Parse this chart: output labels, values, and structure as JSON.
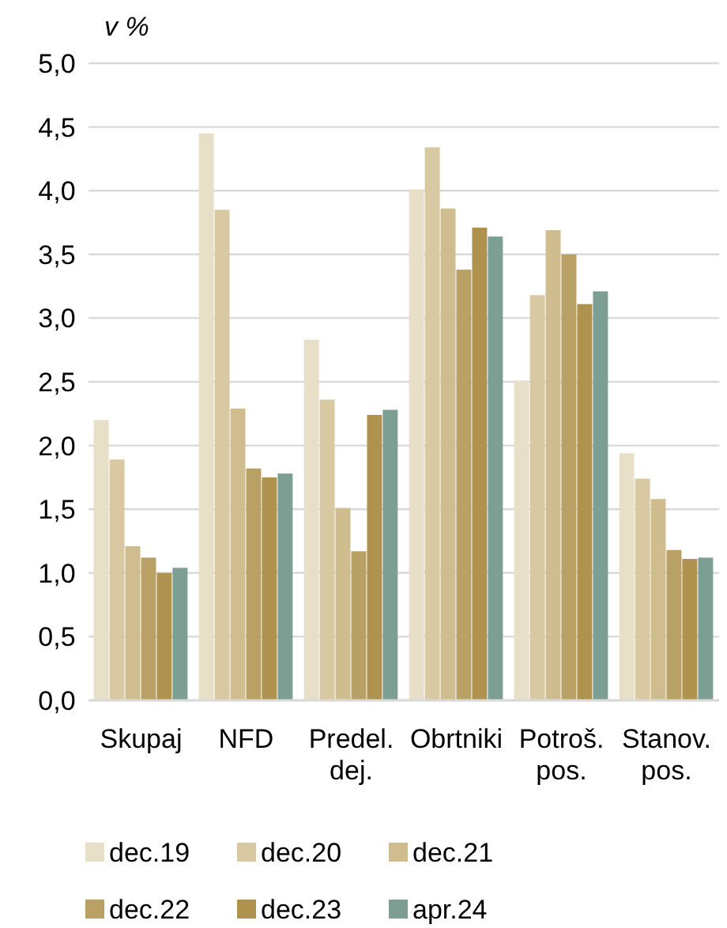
{
  "chart_data": {
    "type": "bar",
    "ylabel": "v %",
    "categories": [
      "Skupaj",
      "NFD",
      "Predel. dej.",
      "Obrtniki",
      "Potroš. pos.",
      "Stanov. pos."
    ],
    "series": [
      {
        "name": "dec.19",
        "color": "#e8dfc8",
        "values": [
          2.2,
          4.45,
          2.83,
          4.01,
          2.51,
          1.94
        ]
      },
      {
        "name": "dec.20",
        "color": "#d8c9a3",
        "values": [
          1.89,
          3.85,
          2.36,
          4.34,
          3.18,
          1.74
        ]
      },
      {
        "name": "dec.21",
        "color": "#cfbd8f",
        "values": [
          1.21,
          2.29,
          1.51,
          3.86,
          3.69,
          1.58
        ]
      },
      {
        "name": "dec.22",
        "color": "#b9a064",
        "values": [
          1.12,
          1.82,
          1.17,
          3.38,
          3.5,
          1.18
        ]
      },
      {
        "name": "dec.23",
        "color": "#b0924f",
        "values": [
          1.0,
          1.75,
          2.24,
          3.71,
          3.11,
          1.11
        ]
      },
      {
        "name": "apr.24",
        "color": "#7d9e92",
        "values": [
          1.04,
          1.78,
          2.28,
          3.64,
          3.21,
          1.12
        ]
      }
    ],
    "ylim": [
      0,
      5
    ],
    "yticks": [
      {
        "value": 0,
        "label": "0,0"
      },
      {
        "value": 0.5,
        "label": "0,5"
      },
      {
        "value": 1,
        "label": "1,0"
      },
      {
        "value": 1.5,
        "label": "1,5"
      },
      {
        "value": 2,
        "label": "2,0"
      },
      {
        "value": 2.5,
        "label": "2,5"
      },
      {
        "value": 3,
        "label": "3,0"
      },
      {
        "value": 3.5,
        "label": "3,5"
      },
      {
        "value": 4,
        "label": "4,0"
      },
      {
        "value": 4.5,
        "label": "4,5"
      },
      {
        "value": 5,
        "label": "5,0"
      }
    ],
    "grid": "y",
    "legend": "bottom"
  }
}
